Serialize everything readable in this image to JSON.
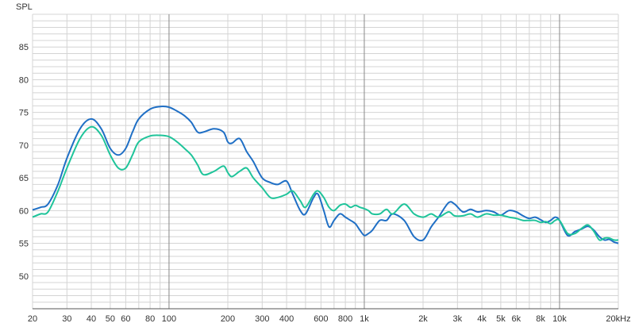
{
  "chart_data": {
    "type": "line",
    "ylabel": "SPL",
    "xscale": "log",
    "xlim": [
      20,
      20000
    ],
    "ylim": [
      45,
      90
    ],
    "grid": true,
    "yticks": [
      50,
      55,
      60,
      65,
      70,
      75,
      80,
      85
    ],
    "xticks": [
      {
        "v": 20,
        "label": "20"
      },
      {
        "v": 30,
        "label": "30"
      },
      {
        "v": 40,
        "label": "40"
      },
      {
        "v": 50,
        "label": "50"
      },
      {
        "v": 60,
        "label": "60"
      },
      {
        "v": 80,
        "label": "80"
      },
      {
        "v": 100,
        "label": "100"
      },
      {
        "v": 200,
        "label": "200"
      },
      {
        "v": 300,
        "label": "300"
      },
      {
        "v": 400,
        "label": "400"
      },
      {
        "v": 600,
        "label": "600"
      },
      {
        "v": 800,
        "label": "800"
      },
      {
        "v": 1000,
        "label": "1k"
      },
      {
        "v": 2000,
        "label": "2k"
      },
      {
        "v": 3000,
        "label": "3k"
      },
      {
        "v": 4000,
        "label": "4k"
      },
      {
        "v": 5000,
        "label": "5k"
      },
      {
        "v": 6000,
        "label": "6k"
      },
      {
        "v": 8000,
        "label": "8k"
      },
      {
        "v": 10000,
        "label": "10k"
      },
      {
        "v": 20000,
        "label": "20kHz"
      }
    ],
    "colors": {
      "series1": "#1f6fc5",
      "series2": "#1fc49a",
      "grid_minor": "#d4d4d4",
      "grid_major": "#888888"
    },
    "series": [
      {
        "color": "#1f6fc5",
        "x": [
          20,
          22,
          24,
          27,
          30,
          35,
          40,
          45,
          50,
          55,
          60,
          65,
          70,
          80,
          90,
          100,
          110,
          120,
          130,
          140,
          150,
          170,
          190,
          200,
          210,
          230,
          250,
          270,
          300,
          330,
          360,
          400,
          430,
          470,
          500,
          550,
          580,
          620,
          660,
          700,
          750,
          800,
          850,
          900,
          950,
          1000,
          1050,
          1100,
          1200,
          1300,
          1400,
          1600,
          1800,
          2000,
          2200,
          2400,
          2700,
          2900,
          3200,
          3500,
          3800,
          4200,
          4600,
          5000,
          5500,
          6000,
          6500,
          7000,
          7500,
          8000,
          8500,
          9000,
          9500,
          10000,
          11000,
          12000,
          13000,
          14000,
          15000,
          16000,
          17000,
          18000,
          19000,
          20000
        ],
        "y": [
          60.1,
          60.5,
          61.0,
          64.0,
          68.0,
          72.5,
          74.0,
          72.5,
          69.5,
          68.5,
          69.5,
          72.0,
          74.0,
          75.5,
          75.9,
          75.8,
          75.2,
          74.5,
          73.5,
          72.0,
          72.0,
          72.5,
          72.0,
          70.5,
          70.3,
          71.0,
          69.0,
          67.5,
          65.0,
          64.3,
          64.0,
          64.5,
          62.5,
          60.0,
          59.5,
          62.0,
          62.5,
          60.0,
          57.5,
          58.5,
          59.5,
          59.0,
          58.5,
          58.0,
          57.0,
          56.2,
          56.5,
          57.0,
          58.5,
          58.5,
          59.5,
          58.5,
          56.0,
          55.5,
          57.5,
          59.0,
          61.2,
          61.0,
          59.8,
          60.2,
          59.8,
          60.0,
          59.8,
          59.3,
          60.0,
          59.8,
          59.2,
          58.8,
          59.0,
          58.6,
          58.2,
          58.5,
          59.0,
          58.5,
          56.2,
          56.8,
          57.2,
          57.6,
          57.0,
          56.0,
          55.5,
          55.6,
          55.2,
          55.0
        ]
      },
      {
        "color": "#1fc49a",
        "x": [
          20,
          22,
          24,
          27,
          30,
          35,
          40,
          45,
          50,
          55,
          60,
          65,
          70,
          80,
          90,
          100,
          110,
          120,
          130,
          140,
          150,
          170,
          190,
          200,
          210,
          230,
          250,
          270,
          300,
          330,
          360,
          400,
          430,
          470,
          500,
          550,
          580,
          620,
          660,
          700,
          750,
          800,
          850,
          900,
          950,
          1000,
          1050,
          1100,
          1200,
          1300,
          1400,
          1600,
          1800,
          2000,
          2200,
          2400,
          2700,
          2900,
          3200,
          3500,
          3800,
          4200,
          4600,
          5000,
          5500,
          6000,
          6500,
          7000,
          7500,
          8000,
          8500,
          9000,
          9500,
          10000,
          11000,
          12000,
          13000,
          14000,
          15000,
          16000,
          17000,
          18000,
          19000,
          20000
        ],
        "y": [
          59.0,
          59.5,
          59.8,
          63.0,
          66.5,
          71.0,
          72.8,
          71.5,
          68.5,
          66.5,
          66.5,
          68.5,
          70.5,
          71.4,
          71.5,
          71.3,
          70.5,
          69.5,
          68.5,
          67.0,
          65.5,
          66.0,
          66.8,
          65.8,
          65.2,
          66.0,
          66.5,
          65.0,
          63.5,
          62.0,
          62.0,
          62.5,
          63.0,
          61.5,
          60.5,
          62.5,
          63.0,
          62.0,
          60.5,
          60.0,
          60.8,
          61.0,
          60.5,
          60.8,
          60.5,
          60.3,
          60.0,
          59.5,
          59.5,
          60.2,
          59.5,
          61.0,
          59.5,
          59.0,
          59.5,
          59.0,
          59.8,
          59.2,
          59.2,
          59.5,
          59.0,
          59.5,
          59.3,
          59.3,
          59.0,
          58.8,
          58.5,
          58.5,
          58.5,
          58.2,
          58.3,
          58.0,
          58.5,
          58.5,
          56.5,
          56.5,
          57.3,
          57.8,
          56.8,
          55.5,
          55.8,
          55.8,
          55.5,
          55.5
        ]
      }
    ]
  }
}
